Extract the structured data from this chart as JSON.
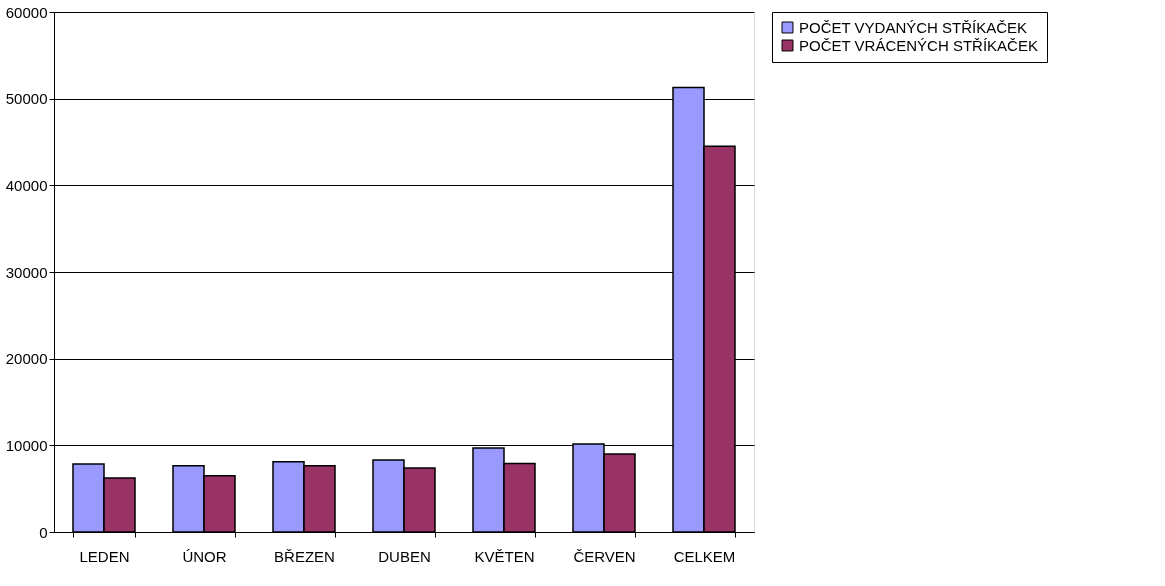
{
  "chart_data": {
    "type": "bar",
    "categories": [
      "LEDEN",
      "ÚNOR",
      "BŘEZEN",
      "DUBEN",
      "KVĚTEN",
      "ČERVEN",
      "CELKEM"
    ],
    "series": [
      {
        "name": "POČET VYDANÝCH STŘÍKAČEK",
        "color": "#9999ff",
        "values": [
          7850,
          7640,
          8120,
          8320,
          9690,
          10160,
          51300
        ]
      },
      {
        "name": "POČET VRÁCENÝCH STŘÍKAČEK",
        "color": "#993366",
        "values": [
          6230,
          6490,
          7640,
          7380,
          7900,
          9010,
          44500
        ]
      }
    ],
    "ylim": [
      0,
      60000
    ],
    "yticks": [
      0,
      10000,
      20000,
      30000,
      40000,
      50000,
      60000
    ],
    "grid": "y",
    "legend": "right"
  }
}
